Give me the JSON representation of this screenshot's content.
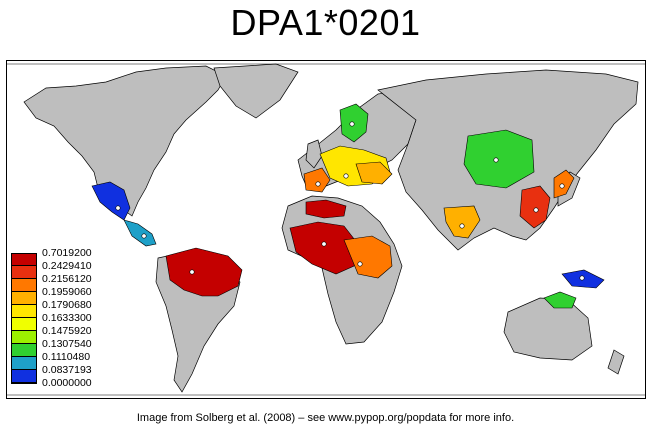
{
  "title": "DPA1*0201",
  "caption": "Image from Solberg et al. (2008) – see www.pypop.org/popdata for more info.",
  "colors": {
    "land": "#bebebe",
    "ocean": "#ffffff",
    "border": "#000000",
    "sample_point": "#ffffff"
  },
  "legend": {
    "items": [
      {
        "label": "0.7019200",
        "color": "#c40000"
      },
      {
        "label": "0.2429410",
        "color": "#e83010"
      },
      {
        "label": "0.2156120",
        "color": "#ff7800"
      },
      {
        "label": "0.1959060",
        "color": "#ffb000"
      },
      {
        "label": "0.1790680",
        "color": "#ffe600"
      },
      {
        "label": "0.1633300",
        "color": "#f0ff00"
      },
      {
        "label": "0.1475920",
        "color": "#9cf000"
      },
      {
        "label": "0.1307540",
        "color": "#30d030"
      },
      {
        "label": "0.1110480",
        "color": "#1ea0c8"
      },
      {
        "label": "0.0837193",
        "color": "#1030e0"
      }
    ],
    "min_label": "0.0000000"
  },
  "regions": [
    {
      "name": "mexico",
      "color": "#1030e0"
    },
    {
      "name": "central-america",
      "color": "#1ea0c8"
    },
    {
      "name": "amazon",
      "color": "#c40000"
    },
    {
      "name": "west-africa",
      "color": "#c40000"
    },
    {
      "name": "central-africa",
      "color": "#ff7800"
    },
    {
      "name": "north-africa",
      "color": "#c40000"
    },
    {
      "name": "iberia",
      "color": "#ff7800"
    },
    {
      "name": "western-europe",
      "color": "#ffe600"
    },
    {
      "name": "scandinavia",
      "color": "#30d030"
    },
    {
      "name": "eastern-europe",
      "color": "#ffb000"
    },
    {
      "name": "india",
      "color": "#ffb000"
    },
    {
      "name": "mongolia",
      "color": "#30d030"
    },
    {
      "name": "east-china",
      "color": "#e83010"
    },
    {
      "name": "japan",
      "color": "#ff7800"
    },
    {
      "name": "new-guinea",
      "color": "#1030e0"
    },
    {
      "name": "north-australia",
      "color": "#30d030"
    }
  ]
}
